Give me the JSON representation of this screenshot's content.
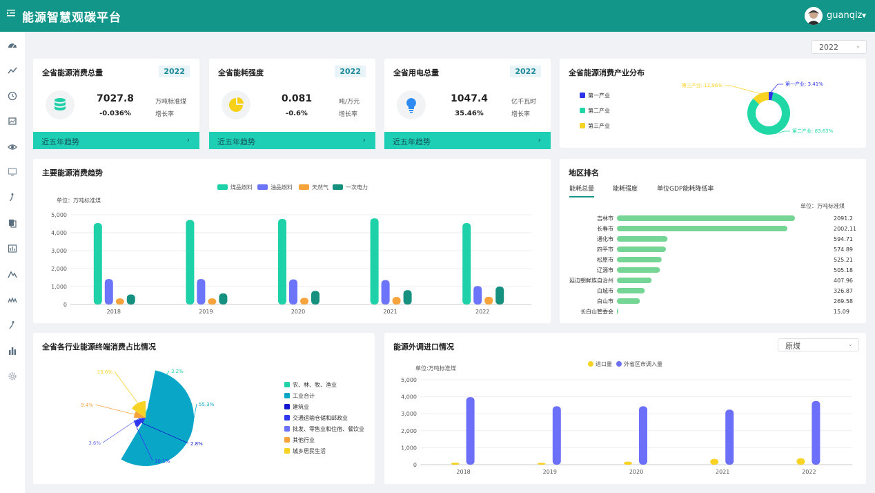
{
  "app": {
    "title": "能源智慧观碳平台",
    "username": "guanqiz"
  },
  "sidebar_icons": [
    "dashboard-icon",
    "trend-icon",
    "clock-icon",
    "monitor-icon",
    "eye-icon",
    "screen-icon",
    "person-walk-icon",
    "document-icon",
    "chart-box-icon",
    "mountain-icon",
    "wave-icon",
    "person-run-icon",
    "bar-chart-icon",
    "gear-icon"
  ],
  "year_filter": "2022",
  "kpis": [
    {
      "title": "全省能源消费总量",
      "year": "2022",
      "value": "7027.8",
      "unit": "万吨标准煤",
      "change": "-0.036%",
      "growth_label": "增长率",
      "trend_label": "近五年趋势",
      "icon": "database-icon"
    },
    {
      "title": "全省能耗强度",
      "year": "2022",
      "value": "0.081",
      "unit": "吨/万元",
      "change": "-0.6%",
      "growth_label": "增长率",
      "trend_label": "近五年趋势",
      "icon": "pie-icon"
    },
    {
      "title": "全省用电总量",
      "year": "2022",
      "value": "1047.4",
      "unit": "亿千瓦时",
      "change": "35.46%",
      "growth_label": "增长率",
      "trend_label": "近五年趋势",
      "icon": "bulb-icon"
    }
  ],
  "colors": {
    "coal": "#1fd1a8",
    "oil": "#6c74fa",
    "gas": "#f6a33b",
    "power": "#16917f",
    "primary": "#12968a"
  },
  "industry_dist": {
    "title": "全省能源消费产业分布",
    "chart_data": {
      "type": "pie",
      "legend": [
        "第一产业",
        "第二产业",
        "第三产业"
      ],
      "slices": [
        {
          "name": "第一产业",
          "value": 3.41,
          "label": "第一产业: 3.41%",
          "color": "#2d34e8"
        },
        {
          "name": "第二产业",
          "value": 83.63,
          "label": "第二产业: 83.63%",
          "color": "#1fd8a6"
        },
        {
          "name": "第三产业",
          "value": 12.96,
          "label": "第三产业: 12.96%",
          "color": "#f9d324"
        }
      ]
    }
  },
  "main_trend": {
    "title": "主要能源消费趋势",
    "unit_label": "单位：万吨标准煤",
    "chart_data": {
      "type": "bar",
      "categories": [
        "2018",
        "2019",
        "2020",
        "2021",
        "2022"
      ],
      "ylim": [
        0,
        5000
      ],
      "yticks": [
        "0",
        "1,000",
        "2,000",
        "3,000",
        "4,000",
        "5,000"
      ],
      "series": [
        {
          "name": "煤品燃料",
          "values": [
            4540,
            4710,
            4770,
            4800,
            4540
          ]
        },
        {
          "name": "油品燃料",
          "values": [
            1420,
            1420,
            1400,
            1360,
            1030
          ]
        },
        {
          "name": "天然气",
          "values": [
            340,
            340,
            370,
            420,
            430
          ]
        },
        {
          "name": "一次电力",
          "values": [
            560,
            620,
            760,
            800,
            1000
          ]
        }
      ]
    }
  },
  "ranking": {
    "title": "地区排名",
    "tabs": [
      "能耗总量",
      "能耗强度",
      "单位GDP能耗降低率"
    ],
    "unit_label": "单位：万吨标准煤",
    "chart_data": {
      "type": "bar",
      "categories": [
        "吉林市",
        "长春市",
        "通化市",
        "四平市",
        "松原市",
        "辽源市",
        "延边朝鲜族自治州",
        "白城市",
        "白山市",
        "长白山管委会"
      ],
      "values": [
        2091.2,
        2002.11,
        594.71,
        574.89,
        525.21,
        505.18,
        407.96,
        326.87,
        269.58,
        15.09
      ],
      "value_labels": [
        "2091.2",
        "2002.11",
        "594.71",
        "574.89",
        "525.21",
        "505.18",
        "407.96",
        "326.87",
        "269.58",
        "15.09"
      ]
    }
  },
  "sector_share": {
    "title": "全省各行业能源终端消费占比情况",
    "chart_data": {
      "type": "pie",
      "slices": [
        {
          "name": "农、林、牧、渔业",
          "value": 3.2,
          "label": "3.2%",
          "color": "#1fd1a8"
        },
        {
          "name": "工业合计",
          "value": 55.3,
          "label": "55.3%",
          "color": "#0aa6c8"
        },
        {
          "name": "建筑业",
          "value": 2.8,
          "label": "2.8%",
          "color": "#1017cc"
        },
        {
          "name": "交通运输仓储和邮政业",
          "value": 10.1,
          "label": "10.1%",
          "color": "#2f36f0"
        },
        {
          "name": "批发、零售业和住宿、餐饮业",
          "value": 3.6,
          "label": "3.6%",
          "color": "#6a72f5"
        },
        {
          "name": "其他行业",
          "value": 9.4,
          "label": "9.4%",
          "color": "#f6a33b"
        },
        {
          "name": "城乡居民生活",
          "value": 15.6,
          "label": "15.6%",
          "color": "#f9d324"
        }
      ]
    }
  },
  "imports": {
    "title": "能源外调进口情况",
    "dropdown": "原煤",
    "unit_label": "单位:万吨标准煤",
    "chart_data": {
      "type": "bar",
      "categories": [
        "2018",
        "2019",
        "2020",
        "2021",
        "2022"
      ],
      "ylim": [
        0,
        5000
      ],
      "yticks": [
        "0",
        "1,000",
        "2,000",
        "3,000",
        "4,000",
        "5,000"
      ],
      "series": [
        {
          "name": "进口量",
          "values": [
            120,
            110,
            180,
            340,
            380
          ],
          "color": "#f9d324"
        },
        {
          "name": "外省区市调入量",
          "values": [
            3980,
            3440,
            3440,
            3240,
            3750
          ],
          "color": "#6c6ff8"
        }
      ]
    }
  }
}
